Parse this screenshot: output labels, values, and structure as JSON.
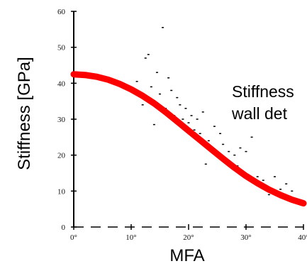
{
  "chart_data": {
    "type": "scatter",
    "xlabel": "MFA",
    "ylabel": "Stiffness [GPa]",
    "xlim": [
      0,
      40
    ],
    "ylim": [
      0,
      60
    ],
    "x_ticks": [
      "0°",
      "10°",
      "20°",
      "30°",
      "40°"
    ],
    "y_ticks": [
      "0",
      "10",
      "20",
      "30",
      "40",
      "50",
      "60"
    ],
    "annotation_lines": [
      "Stiffness",
      "wall det"
    ],
    "colors": {
      "curve": "#ff0000",
      "points": "#000000",
      "axis": "#000000"
    },
    "scatter_points": [
      {
        "x": 11,
        "y": 40.5
      },
      {
        "x": 12,
        "y": 34
      },
      {
        "x": 12.5,
        "y": 47
      },
      {
        "x": 13,
        "y": 48
      },
      {
        "x": 13.5,
        "y": 39
      },
      {
        "x": 14,
        "y": 28.5
      },
      {
        "x": 14.5,
        "y": 43
      },
      {
        "x": 15,
        "y": 37
      },
      {
        "x": 15.5,
        "y": 55.5
      },
      {
        "x": 16,
        "y": 33
      },
      {
        "x": 16.5,
        "y": 41.5
      },
      {
        "x": 17,
        "y": 38
      },
      {
        "x": 17.5,
        "y": 31
      },
      {
        "x": 18,
        "y": 36
      },
      {
        "x": 18.5,
        "y": 34
      },
      {
        "x": 19,
        "y": 30
      },
      {
        "x": 19.5,
        "y": 33
      },
      {
        "x": 20,
        "y": 29
      },
      {
        "x": 20.5,
        "y": 31
      },
      {
        "x": 21,
        "y": 27
      },
      {
        "x": 21.5,
        "y": 30
      },
      {
        "x": 22,
        "y": 26
      },
      {
        "x": 22.5,
        "y": 32
      },
      {
        "x": 23,
        "y": 17.5
      },
      {
        "x": 23.5,
        "y": 24
      },
      {
        "x": 24,
        "y": 22
      },
      {
        "x": 24.5,
        "y": 28
      },
      {
        "x": 25,
        "y": 20
      },
      {
        "x": 25.5,
        "y": 26
      },
      {
        "x": 26,
        "y": 23
      },
      {
        "x": 26.5,
        "y": 18
      },
      {
        "x": 27,
        "y": 21
      },
      {
        "x": 28,
        "y": 20
      },
      {
        "x": 28.5,
        "y": 17
      },
      {
        "x": 29,
        "y": 22
      },
      {
        "x": 30,
        "y": 21
      },
      {
        "x": 31,
        "y": 25
      },
      {
        "x": 32,
        "y": 14
      },
      {
        "x": 33,
        "y": 13
      },
      {
        "x": 34,
        "y": 9
      },
      {
        "x": 35,
        "y": 14
      },
      {
        "x": 36,
        "y": 10.5
      },
      {
        "x": 37,
        "y": 12
      },
      {
        "x": 38,
        "y": 10
      }
    ],
    "trend_curve": [
      {
        "x": 0,
        "y": 42.5
      },
      {
        "x": 2,
        "y": 42.3
      },
      {
        "x": 4,
        "y": 41.8
      },
      {
        "x": 6,
        "y": 41
      },
      {
        "x": 8,
        "y": 39.8
      },
      {
        "x": 10,
        "y": 38.3
      },
      {
        "x": 12,
        "y": 36.5
      },
      {
        "x": 14,
        "y": 34.4
      },
      {
        "x": 16,
        "y": 32
      },
      {
        "x": 18,
        "y": 29.4
      },
      {
        "x": 20,
        "y": 26.8
      },
      {
        "x": 22,
        "y": 24.2
      },
      {
        "x": 24,
        "y": 21.6
      },
      {
        "x": 26,
        "y": 19
      },
      {
        "x": 28,
        "y": 16.5
      },
      {
        "x": 30,
        "y": 14.2
      },
      {
        "x": 32,
        "y": 12.2
      },
      {
        "x": 34,
        "y": 10.4
      },
      {
        "x": 36,
        "y": 8.9
      },
      {
        "x": 38,
        "y": 7.6
      },
      {
        "x": 40,
        "y": 6.6
      }
    ]
  }
}
